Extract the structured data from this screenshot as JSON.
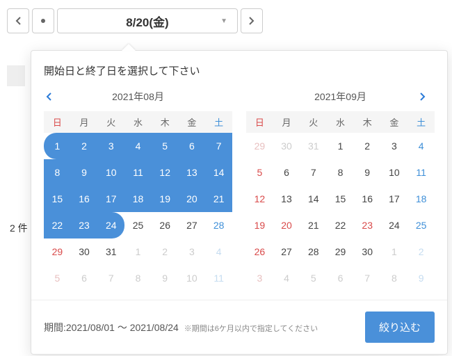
{
  "toolbar": {
    "date_label": "8/20(金)"
  },
  "bg": {
    "count_text": "2 件"
  },
  "popup": {
    "instruction": "開始日と終了日を選択して下さい",
    "left": {
      "title": "2021年08月"
    },
    "right": {
      "title": "2021年09月"
    },
    "dow": [
      "日",
      "月",
      "火",
      "水",
      "木",
      "金",
      "土"
    ],
    "left_days": [
      {
        "n": "1",
        "c": "sun sel sel-start"
      },
      {
        "n": "2",
        "c": "sel"
      },
      {
        "n": "3",
        "c": "sel"
      },
      {
        "n": "4",
        "c": "sel"
      },
      {
        "n": "5",
        "c": "sel"
      },
      {
        "n": "6",
        "c": "sel"
      },
      {
        "n": "7",
        "c": "sat sel"
      },
      {
        "n": "8",
        "c": "sun sel"
      },
      {
        "n": "9",
        "c": "sel"
      },
      {
        "n": "10",
        "c": "sel"
      },
      {
        "n": "11",
        "c": "sel"
      },
      {
        "n": "12",
        "c": "sel"
      },
      {
        "n": "13",
        "c": "sel"
      },
      {
        "n": "14",
        "c": "sat sel"
      },
      {
        "n": "15",
        "c": "sun sel"
      },
      {
        "n": "16",
        "c": "sel"
      },
      {
        "n": "17",
        "c": "sel"
      },
      {
        "n": "18",
        "c": "sel"
      },
      {
        "n": "19",
        "c": "sel"
      },
      {
        "n": "20",
        "c": "sel"
      },
      {
        "n": "21",
        "c": "sat sel"
      },
      {
        "n": "22",
        "c": "sun sel"
      },
      {
        "n": "23",
        "c": "sel"
      },
      {
        "n": "24",
        "c": "sel sel-end"
      },
      {
        "n": "25",
        "c": ""
      },
      {
        "n": "26",
        "c": ""
      },
      {
        "n": "27",
        "c": ""
      },
      {
        "n": "28",
        "c": "sat"
      },
      {
        "n": "29",
        "c": "sun"
      },
      {
        "n": "30",
        "c": ""
      },
      {
        "n": "31",
        "c": ""
      },
      {
        "n": "1",
        "c": "other"
      },
      {
        "n": "2",
        "c": "other"
      },
      {
        "n": "3",
        "c": "other"
      },
      {
        "n": "4",
        "c": "other sat"
      },
      {
        "n": "5",
        "c": "other sun"
      },
      {
        "n": "6",
        "c": "other"
      },
      {
        "n": "7",
        "c": "other"
      },
      {
        "n": "8",
        "c": "other"
      },
      {
        "n": "9",
        "c": "other"
      },
      {
        "n": "10",
        "c": "other"
      },
      {
        "n": "11",
        "c": "other sat"
      }
    ],
    "right_days": [
      {
        "n": "29",
        "c": "other sun"
      },
      {
        "n": "30",
        "c": "other"
      },
      {
        "n": "31",
        "c": "other"
      },
      {
        "n": "1",
        "c": ""
      },
      {
        "n": "2",
        "c": ""
      },
      {
        "n": "3",
        "c": ""
      },
      {
        "n": "4",
        "c": "sat"
      },
      {
        "n": "5",
        "c": "sun"
      },
      {
        "n": "6",
        "c": ""
      },
      {
        "n": "7",
        "c": ""
      },
      {
        "n": "8",
        "c": ""
      },
      {
        "n": "9",
        "c": ""
      },
      {
        "n": "10",
        "c": ""
      },
      {
        "n": "11",
        "c": "sat"
      },
      {
        "n": "12",
        "c": "sun"
      },
      {
        "n": "13",
        "c": ""
      },
      {
        "n": "14",
        "c": ""
      },
      {
        "n": "15",
        "c": ""
      },
      {
        "n": "16",
        "c": ""
      },
      {
        "n": "17",
        "c": ""
      },
      {
        "n": "18",
        "c": "sat"
      },
      {
        "n": "19",
        "c": "sun"
      },
      {
        "n": "20",
        "c": "holiday"
      },
      {
        "n": "21",
        "c": ""
      },
      {
        "n": "22",
        "c": ""
      },
      {
        "n": "23",
        "c": "holiday"
      },
      {
        "n": "24",
        "c": ""
      },
      {
        "n": "25",
        "c": "sat"
      },
      {
        "n": "26",
        "c": "sun"
      },
      {
        "n": "27",
        "c": ""
      },
      {
        "n": "28",
        "c": ""
      },
      {
        "n": "29",
        "c": ""
      },
      {
        "n": "30",
        "c": ""
      },
      {
        "n": "1",
        "c": "other"
      },
      {
        "n": "2",
        "c": "other sat"
      },
      {
        "n": "3",
        "c": "other sun"
      },
      {
        "n": "4",
        "c": "other"
      },
      {
        "n": "5",
        "c": "other"
      },
      {
        "n": "6",
        "c": "other"
      },
      {
        "n": "7",
        "c": "other"
      },
      {
        "n": "8",
        "c": "other"
      },
      {
        "n": "9",
        "c": "other sat"
      }
    ],
    "footer": {
      "period_label": "期間:",
      "period_value": "2021/08/01 ～ 2021/08/24",
      "note": "※期間は6ケ月以内で指定してください",
      "button": "絞り込む"
    }
  }
}
